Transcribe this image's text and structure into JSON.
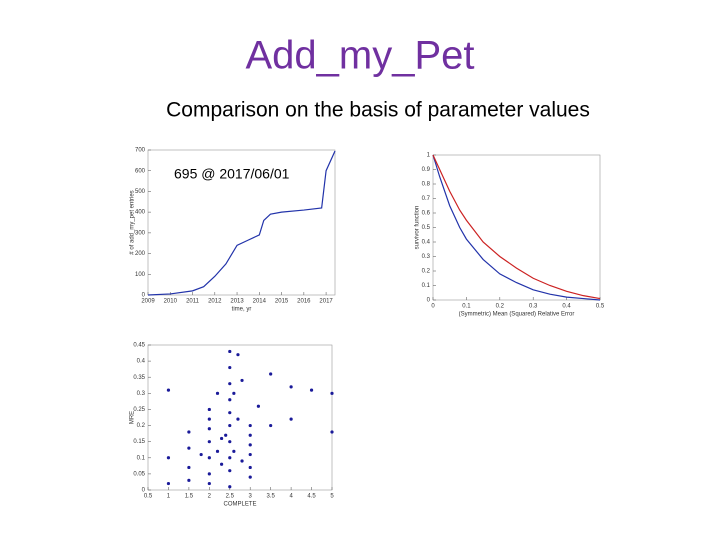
{
  "title": "Add_my_Pet",
  "subtitle": "Comparison on the basis of parameter values",
  "chart_data": [
    {
      "type": "line",
      "xlabel": "time, yr",
      "ylabel": "# of add_my_pet entries",
      "annotation": "695 @ 2017/06/01",
      "x": [
        2009,
        2010,
        2011,
        2011.5,
        2012,
        2012.5,
        2013,
        2013.5,
        2014,
        2014.2,
        2014.5,
        2015,
        2016,
        2016.8,
        2017,
        2017.4
      ],
      "series": [
        {
          "color": "#2233aa",
          "values": [
            0,
            5,
            20,
            40,
            90,
            150,
            240,
            265,
            290,
            360,
            390,
            400,
            410,
            420,
            600,
            695
          ]
        }
      ],
      "xlim": [
        2009,
        2017.4
      ],
      "xticks": [
        2009,
        2010,
        2011,
        2012,
        2013,
        2014,
        2015,
        2016,
        2017
      ],
      "ylim": [
        0,
        700
      ],
      "yticks": [
        0,
        100,
        200,
        300,
        400,
        500,
        600,
        700
      ]
    },
    {
      "type": "line",
      "xlabel": "(Symmetric) Mean (Squared) Relative Error",
      "ylabel": "survivor function",
      "x": [
        0,
        0.02,
        0.05,
        0.08,
        0.1,
        0.15,
        0.2,
        0.25,
        0.3,
        0.35,
        0.4,
        0.45,
        0.5
      ],
      "series": [
        {
          "color": "#2233aa",
          "values": [
            1,
            0.85,
            0.65,
            0.5,
            0.42,
            0.28,
            0.18,
            0.12,
            0.07,
            0.04,
            0.02,
            0.01,
            0
          ]
        },
        {
          "color": "#cc2222",
          "values": [
            1,
            0.9,
            0.75,
            0.62,
            0.55,
            0.4,
            0.3,
            0.22,
            0.15,
            0.1,
            0.06,
            0.03,
            0.01
          ]
        }
      ],
      "xlim": [
        0,
        0.5
      ],
      "xticks": [
        0,
        0.1,
        0.2,
        0.3,
        0.4,
        0.5
      ],
      "ylim": [
        0,
        1
      ],
      "yticks": [
        0,
        0.1,
        0.2,
        0.3,
        0.4,
        0.5,
        0.6,
        0.7,
        0.8,
        0.9,
        1
      ]
    },
    {
      "type": "scatter",
      "xlabel": "COMPLETE",
      "ylabel": "MRE",
      "color": "#1a1a99",
      "x": [
        1,
        1,
        1,
        1.5,
        1.5,
        1.5,
        1.5,
        2,
        2,
        2,
        2,
        2,
        2,
        2,
        2.2,
        2.2,
        2.3,
        2.3,
        2.5,
        2.5,
        2.5,
        2.5,
        2.5,
        2.5,
        2.5,
        2.5,
        2.5,
        2.6,
        2.6,
        2.7,
        2.7,
        2.8,
        2.8,
        3,
        3,
        3,
        3,
        3,
        3,
        3.5,
        3.5,
        4,
        4,
        4.5,
        5,
        5,
        2.5,
        2.4,
        1.8,
        3.2
      ],
      "values": [
        0.31,
        0.1,
        0.02,
        0.13,
        0.07,
        0.03,
        0.18,
        0.22,
        0.15,
        0.1,
        0.05,
        0.02,
        0.19,
        0.25,
        0.3,
        0.12,
        0.16,
        0.08,
        0.43,
        0.38,
        0.33,
        0.28,
        0.24,
        0.2,
        0.15,
        0.1,
        0.06,
        0.3,
        0.12,
        0.42,
        0.22,
        0.34,
        0.09,
        0.2,
        0.17,
        0.14,
        0.11,
        0.07,
        0.04,
        0.36,
        0.2,
        0.32,
        0.22,
        0.31,
        0.3,
        0.18,
        0.01,
        0.17,
        0.11,
        0.26
      ],
      "xlim": [
        0.5,
        5
      ],
      "xticks": [
        0.5,
        1,
        1.5,
        2,
        2.5,
        3,
        3.5,
        4,
        4.5,
        5
      ],
      "ylim": [
        0,
        0.45
      ],
      "yticks": [
        0,
        0.05,
        0.1,
        0.15,
        0.2,
        0.25,
        0.3,
        0.35,
        0.4,
        0.45
      ]
    }
  ]
}
